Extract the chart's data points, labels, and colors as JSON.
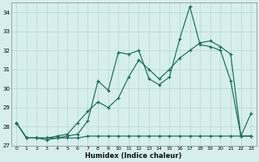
{
  "x": [
    0,
    1,
    2,
    3,
    4,
    5,
    6,
    7,
    8,
    9,
    10,
    11,
    12,
    13,
    14,
    15,
    16,
    17,
    18,
    19,
    20,
    21,
    22,
    23
  ],
  "line1": [
    28.2,
    27.4,
    27.4,
    27.3,
    27.4,
    27.5,
    27.6,
    28.3,
    30.4,
    29.9,
    31.9,
    31.8,
    32.0,
    30.5,
    30.2,
    30.6,
    32.6,
    34.3,
    32.3,
    32.2,
    32.0,
    30.4,
    27.5,
    27.5
  ],
  "line2": [
    28.2,
    27.4,
    27.4,
    27.4,
    27.5,
    27.6,
    28.2,
    28.8,
    29.3,
    29.0,
    29.5,
    30.6,
    31.5,
    31.0,
    30.5,
    31.0,
    31.6,
    32.0,
    32.4,
    32.5,
    32.2,
    31.8,
    27.5,
    28.7
  ],
  "line3": [
    28.2,
    27.4,
    27.4,
    27.4,
    27.4,
    27.4,
    27.4,
    27.5,
    27.5,
    27.5,
    27.5,
    27.5,
    27.5,
    27.5,
    27.5,
    27.5,
    27.5,
    27.5,
    27.5,
    27.5,
    27.5,
    27.5,
    27.5,
    27.5
  ],
  "bg_color": "#d6efed",
  "line_color": "#1a6b5a",
  "grid_color": "#bcd9d6",
  "xlabel": "Humidex (Indice chaleur)",
  "ylim": [
    27,
    34.5
  ],
  "xlim": [
    -0.5,
    23.5
  ],
  "yticks": [
    27,
    28,
    29,
    30,
    31,
    32,
    33,
    34
  ],
  "xticks": [
    0,
    1,
    2,
    3,
    4,
    5,
    6,
    7,
    8,
    9,
    10,
    11,
    12,
    13,
    14,
    15,
    16,
    17,
    18,
    19,
    20,
    21,
    22,
    23
  ]
}
